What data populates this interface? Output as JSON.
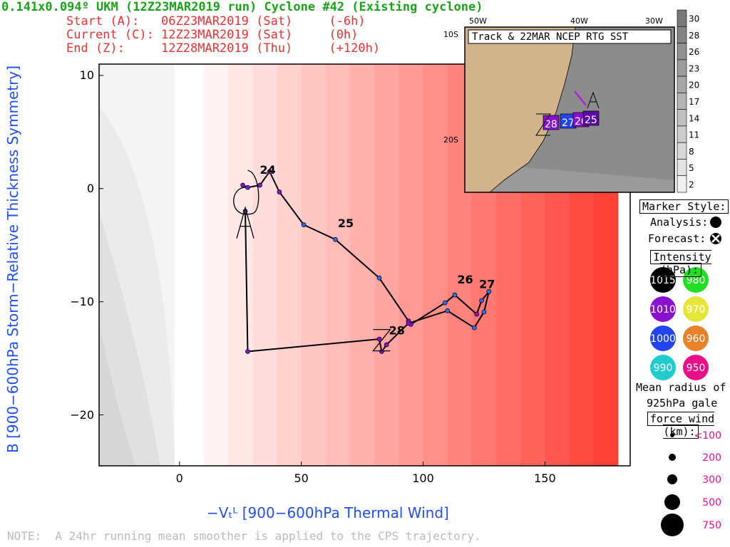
{
  "header": {
    "title": "0.141x0.094º UKM (12Z23MAR2019 run) Cyclone #42 (Existing cyclone)",
    "start": "Start (A):   06Z23MAR2019 (Sat)     (-6h)",
    "current": "Current (C): 12Z23MAR2019 (Sat)     (0h)",
    "end": "End (Z):     12Z28MAR2019 (Thu)     (+120h)"
  },
  "note": "NOTE:  A 24hr running mean smoother is applied to the CPS trajectory.",
  "chart_data": [
    {
      "type": "line",
      "title": "",
      "xlabel": "−Vₜᴸ [900−600hPa Thermal Wind]",
      "ylabel": "B [900−600hPa Storm−Relative Thickness Symmetry]",
      "xlim": [
        -33,
        185
      ],
      "ylim": [
        -24.5,
        11
      ],
      "xticks": [
        0,
        50,
        100,
        150
      ],
      "yticks": [
        10,
        0,
        -10,
        -20
      ],
      "xtick_labels": [
        "0",
        "50",
        "100",
        "150"
      ],
      "ytick_labels": [
        "10",
        "0",
        "−10",
        "−20"
      ],
      "background": "shaded field: white near x=0 increasing to red toward x=185, grey shading for x<0",
      "series": [
        {
          "x": [
            26,
            28,
            33,
            37,
            41,
            51,
            64,
            82,
            94,
            95,
            109,
            113,
            122,
            124,
            127,
            127,
            125,
            121,
            110,
            94,
            85,
            83,
            82,
            28,
            27
          ],
          "y": [
            0.3,
            0.1,
            0.3,
            1.5,
            -0.3,
            -3.2,
            -4.5,
            -7.9,
            -11.7,
            -12.0,
            -10.1,
            -9.4,
            -11.1,
            -9.9,
            -9.1,
            -9.1,
            -10.9,
            -12.3,
            -10.8,
            -11.9,
            -13.8,
            -14.4,
            -13.3,
            -14.4,
            -2.0
          ],
          "labels": [
            {
              "text": "24",
              "x": 33,
              "y": 1.3
            },
            {
              "text": "25",
              "x": 65,
              "y": -3.4
            },
            {
              "text": "26",
              "x": 114,
              "y": -8.4
            },
            {
              "text": "27",
              "x": 123,
              "y": -8.8
            },
            {
              "text": "28",
              "x": 86,
              "y": -12.9
            }
          ]
        }
      ],
      "start_marker": "A",
      "end_marker": "Z"
    },
    {
      "type": "map",
      "title": "Track & 22MAR NCEP RTG SST",
      "lon_labels": [
        "50W",
        "40W",
        "30W"
      ],
      "lat_labels": [
        "10S",
        "20S"
      ],
      "track_labels": [
        "28",
        "27",
        "26",
        "25"
      ],
      "colorbar_ticks": [
        "30",
        "28",
        "26",
        "23",
        "20",
        "17",
        "14",
        "11",
        "8",
        "5",
        "2"
      ]
    }
  ],
  "legend": {
    "marker_style_title": "Marker Style:",
    "analysis": "Analysis:",
    "forecast": "Forecast:",
    "intensity_title": "Intensity (hPa):",
    "intensities": [
      {
        "label": "1015",
        "color": "#000000"
      },
      {
        "label": "980",
        "color": "#22dd22"
      },
      {
        "label": "1010",
        "color": "#8a10cf"
      },
      {
        "label": "970",
        "color": "#e6e63a"
      },
      {
        "label": "1000",
        "color": "#2244ee"
      },
      {
        "label": "960",
        "color": "#e8822a"
      },
      {
        "label": "990",
        "color": "#22cccc"
      },
      {
        "label": "950",
        "color": "#e8108a"
      }
    ],
    "radius_title_1": "Mean radius of",
    "radius_title_2": "925hPa gale",
    "radius_title_3": "force wind (km):",
    "radius_sizes": [
      "<100",
      "200",
      "300",
      "500",
      "750"
    ]
  }
}
